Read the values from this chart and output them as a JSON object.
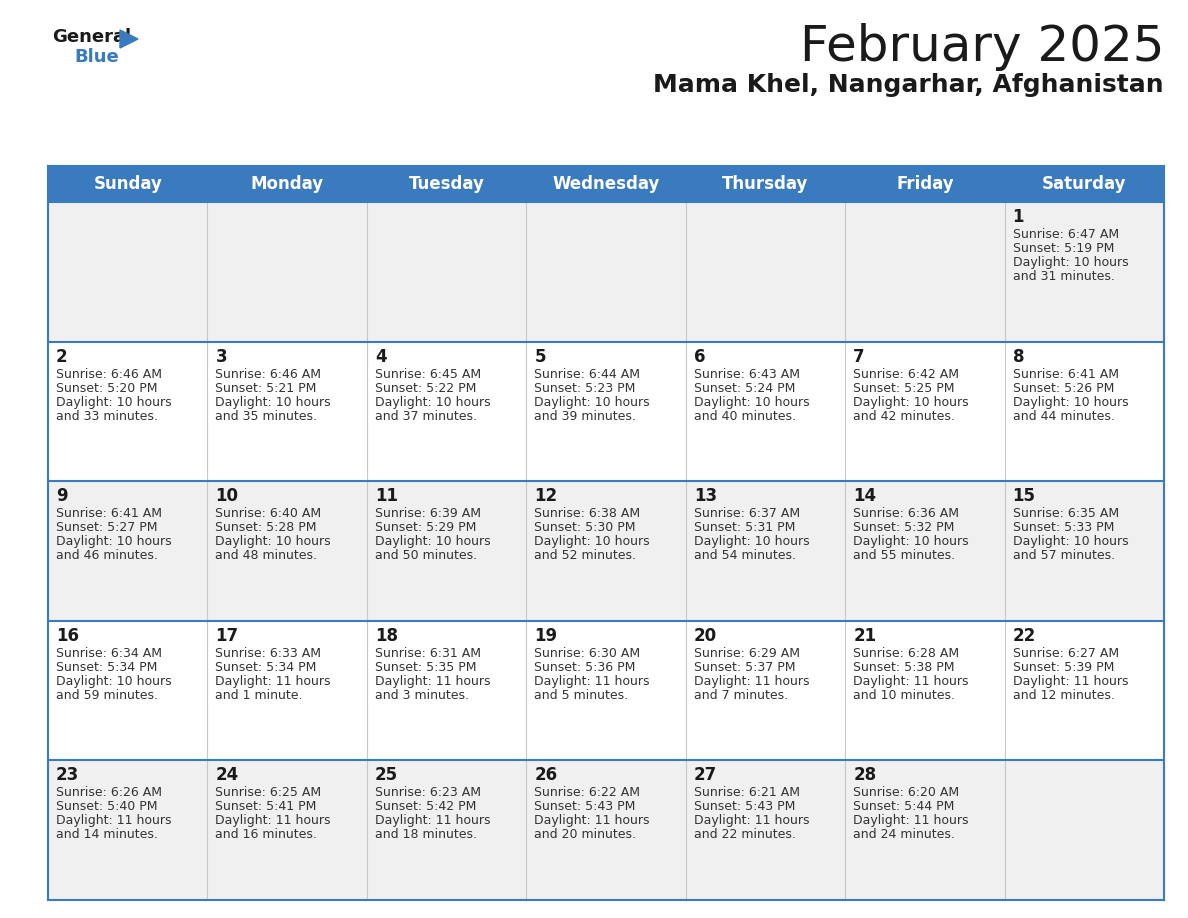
{
  "title": "February 2025",
  "subtitle": "Mama Khel, Nangarhar, Afghanistan",
  "header_color": "#3a7abf",
  "header_text_color": "#ffffff",
  "day_names": [
    "Sunday",
    "Monday",
    "Tuesday",
    "Wednesday",
    "Thursday",
    "Friday",
    "Saturday"
  ],
  "days": [
    {
      "day": 1,
      "col": 6,
      "row": 0,
      "sunrise": "6:47 AM",
      "sunset": "5:19 PM",
      "daylight": "10 hours and 31 minutes."
    },
    {
      "day": 2,
      "col": 0,
      "row": 1,
      "sunrise": "6:46 AM",
      "sunset": "5:20 PM",
      "daylight": "10 hours and 33 minutes."
    },
    {
      "day": 3,
      "col": 1,
      "row": 1,
      "sunrise": "6:46 AM",
      "sunset": "5:21 PM",
      "daylight": "10 hours and 35 minutes."
    },
    {
      "day": 4,
      "col": 2,
      "row": 1,
      "sunrise": "6:45 AM",
      "sunset": "5:22 PM",
      "daylight": "10 hours and 37 minutes."
    },
    {
      "day": 5,
      "col": 3,
      "row": 1,
      "sunrise": "6:44 AM",
      "sunset": "5:23 PM",
      "daylight": "10 hours and 39 minutes."
    },
    {
      "day": 6,
      "col": 4,
      "row": 1,
      "sunrise": "6:43 AM",
      "sunset": "5:24 PM",
      "daylight": "10 hours and 40 minutes."
    },
    {
      "day": 7,
      "col": 5,
      "row": 1,
      "sunrise": "6:42 AM",
      "sunset": "5:25 PM",
      "daylight": "10 hours and 42 minutes."
    },
    {
      "day": 8,
      "col": 6,
      "row": 1,
      "sunrise": "6:41 AM",
      "sunset": "5:26 PM",
      "daylight": "10 hours and 44 minutes."
    },
    {
      "day": 9,
      "col": 0,
      "row": 2,
      "sunrise": "6:41 AM",
      "sunset": "5:27 PM",
      "daylight": "10 hours and 46 minutes."
    },
    {
      "day": 10,
      "col": 1,
      "row": 2,
      "sunrise": "6:40 AM",
      "sunset": "5:28 PM",
      "daylight": "10 hours and 48 minutes."
    },
    {
      "day": 11,
      "col": 2,
      "row": 2,
      "sunrise": "6:39 AM",
      "sunset": "5:29 PM",
      "daylight": "10 hours and 50 minutes."
    },
    {
      "day": 12,
      "col": 3,
      "row": 2,
      "sunrise": "6:38 AM",
      "sunset": "5:30 PM",
      "daylight": "10 hours and 52 minutes."
    },
    {
      "day": 13,
      "col": 4,
      "row": 2,
      "sunrise": "6:37 AM",
      "sunset": "5:31 PM",
      "daylight": "10 hours and 54 minutes."
    },
    {
      "day": 14,
      "col": 5,
      "row": 2,
      "sunrise": "6:36 AM",
      "sunset": "5:32 PM",
      "daylight": "10 hours and 55 minutes."
    },
    {
      "day": 15,
      "col": 6,
      "row": 2,
      "sunrise": "6:35 AM",
      "sunset": "5:33 PM",
      "daylight": "10 hours and 57 minutes."
    },
    {
      "day": 16,
      "col": 0,
      "row": 3,
      "sunrise": "6:34 AM",
      "sunset": "5:34 PM",
      "daylight": "10 hours and 59 minutes."
    },
    {
      "day": 17,
      "col": 1,
      "row": 3,
      "sunrise": "6:33 AM",
      "sunset": "5:34 PM",
      "daylight": "11 hours and 1 minute."
    },
    {
      "day": 18,
      "col": 2,
      "row": 3,
      "sunrise": "6:31 AM",
      "sunset": "5:35 PM",
      "daylight": "11 hours and 3 minutes."
    },
    {
      "day": 19,
      "col": 3,
      "row": 3,
      "sunrise": "6:30 AM",
      "sunset": "5:36 PM",
      "daylight": "11 hours and 5 minutes."
    },
    {
      "day": 20,
      "col": 4,
      "row": 3,
      "sunrise": "6:29 AM",
      "sunset": "5:37 PM",
      "daylight": "11 hours and 7 minutes."
    },
    {
      "day": 21,
      "col": 5,
      "row": 3,
      "sunrise": "6:28 AM",
      "sunset": "5:38 PM",
      "daylight": "11 hours and 10 minutes."
    },
    {
      "day": 22,
      "col": 6,
      "row": 3,
      "sunrise": "6:27 AM",
      "sunset": "5:39 PM",
      "daylight": "11 hours and 12 minutes."
    },
    {
      "day": 23,
      "col": 0,
      "row": 4,
      "sunrise": "6:26 AM",
      "sunset": "5:40 PM",
      "daylight": "11 hours and 14 minutes."
    },
    {
      "day": 24,
      "col": 1,
      "row": 4,
      "sunrise": "6:25 AM",
      "sunset": "5:41 PM",
      "daylight": "11 hours and 16 minutes."
    },
    {
      "day": 25,
      "col": 2,
      "row": 4,
      "sunrise": "6:23 AM",
      "sunset": "5:42 PM",
      "daylight": "11 hours and 18 minutes."
    },
    {
      "day": 26,
      "col": 3,
      "row": 4,
      "sunrise": "6:22 AM",
      "sunset": "5:43 PM",
      "daylight": "11 hours and 20 minutes."
    },
    {
      "day": 27,
      "col": 4,
      "row": 4,
      "sunrise": "6:21 AM",
      "sunset": "5:43 PM",
      "daylight": "11 hours and 22 minutes."
    },
    {
      "day": 28,
      "col": 5,
      "row": 4,
      "sunrise": "6:20 AM",
      "sunset": "5:44 PM",
      "daylight": "11 hours and 24 minutes."
    }
  ],
  "num_rows": 5,
  "background_color": "#ffffff",
  "cell_bg_even": "#f0f0f0",
  "cell_bg_odd": "#ffffff",
  "header_color_alt": "#4a8ac4",
  "divider_color": "#3a7abf",
  "day_number_color": "#1a1a1a",
  "info_text_color": "#333333",
  "logo_general_color": "#1a1a1a",
  "logo_blue_color": "#3a7abf",
  "title_fontsize": 36,
  "subtitle_fontsize": 18,
  "header_fontsize": 12,
  "day_num_fontsize": 12,
  "info_fontsize": 9
}
